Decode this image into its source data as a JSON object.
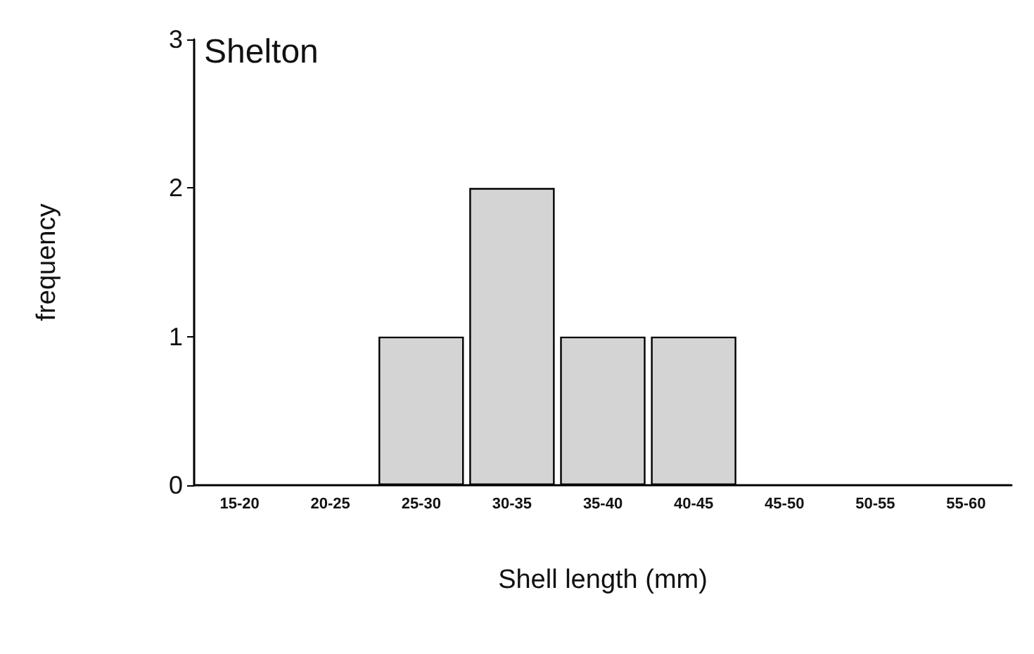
{
  "chart_data": {
    "type": "bar",
    "title": "Shelton",
    "xlabel": "Shell length (mm)",
    "ylabel": "frequency",
    "categories": [
      "15-20",
      "20-25",
      "25-30",
      "30-35",
      "35-40",
      "40-45",
      "45-50",
      "50-55",
      "55-60"
    ],
    "values": [
      0,
      0,
      1,
      2,
      1,
      1,
      0,
      0,
      0
    ],
    "color": "#d4d4d4",
    "ylim": [
      0,
      3
    ],
    "yticks": [
      0,
      1,
      2,
      3
    ],
    "grid": false
  }
}
